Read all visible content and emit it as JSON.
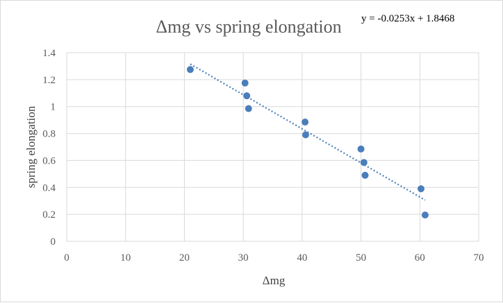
{
  "chart_data": {
    "type": "scatter",
    "title": "Δmg vs spring elongation",
    "xlabel": "Δmg",
    "ylabel": "spring elongation",
    "xlim": [
      0,
      70
    ],
    "ylim": [
      0,
      1.4
    ],
    "xticks": [
      0,
      10,
      20,
      30,
      40,
      50,
      60,
      70
    ],
    "xtick_labels": [
      "0",
      "10",
      "20",
      "30",
      "40",
      "50",
      "60",
      "70"
    ],
    "yticks": [
      0,
      0.2,
      0.4,
      0.6,
      0.8,
      1.0,
      1.2,
      1.4
    ],
    "ytick_labels": [
      "0",
      "0.2",
      "0.4",
      "0.6",
      "0.8",
      "1",
      "1.2",
      "1.4"
    ],
    "grid": true,
    "legend": "none",
    "series": [
      {
        "points": [
          {
            "x": 21.0,
            "y": 1.275
          },
          {
            "x": 30.3,
            "y": 1.175
          },
          {
            "x": 30.6,
            "y": 1.08
          },
          {
            "x": 30.9,
            "y": 0.985
          },
          {
            "x": 40.5,
            "y": 0.885
          },
          {
            "x": 40.6,
            "y": 0.79
          },
          {
            "x": 50.0,
            "y": 0.685
          },
          {
            "x": 50.5,
            "y": 0.585
          },
          {
            "x": 50.7,
            "y": 0.49
          },
          {
            "x": 60.2,
            "y": 0.39
          },
          {
            "x": 60.9,
            "y": 0.195
          }
        ],
        "color": "#4a7ebb"
      }
    ],
    "trendline": {
      "type": "linear",
      "slope": -0.0253,
      "intercept": 1.8468,
      "x_range": [
        21.0,
        60.9
      ],
      "style": "dotted",
      "color": "#4a7ebb",
      "equation_label": "y = -0.0253x + 1.8468"
    }
  }
}
